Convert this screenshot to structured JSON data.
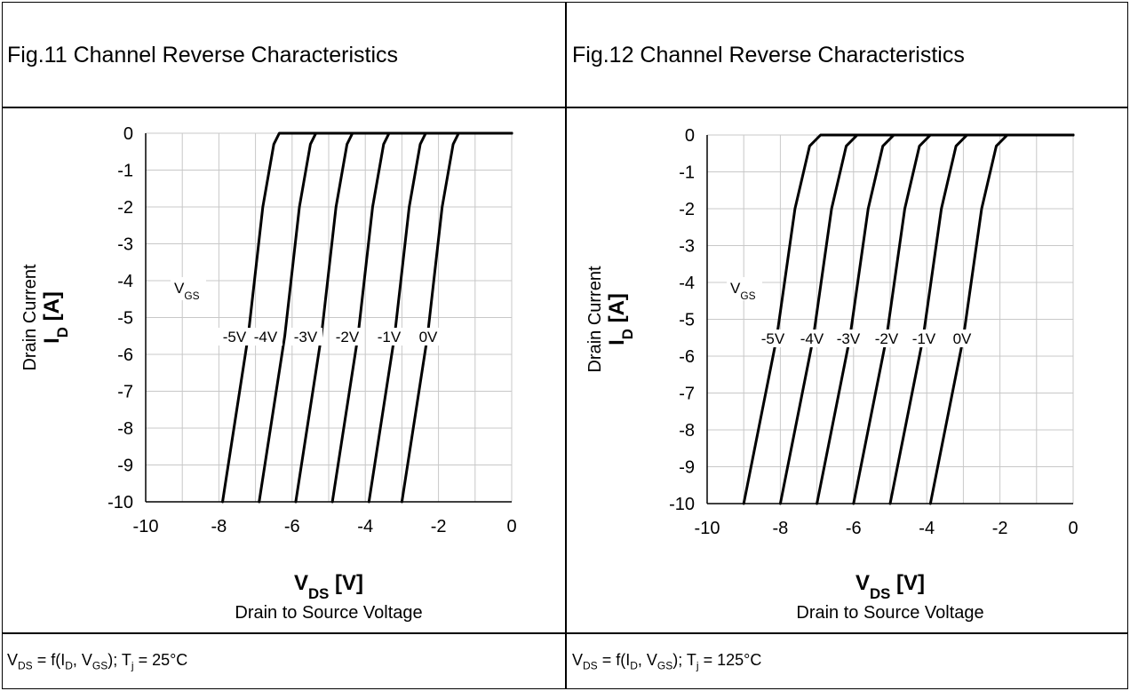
{
  "chart_data": [
    {
      "type": "line",
      "title": "Fig.11  Channel Reverse Characteristics",
      "xlabel_main": "V",
      "xlabel_sub": "DS",
      "xlabel_unit": " [V]",
      "xlabel_desc": "Drain to Source Voltage",
      "ylabel_main": "I",
      "ylabel_sub": "D",
      "ylabel_unit": " [A]",
      "ylabel_desc": "Drain Current",
      "xlim": [
        -10,
        0
      ],
      "ylim": [
        -10,
        0
      ],
      "xticks": [
        "-10",
        "-8",
        "-6",
        "-4",
        "-2",
        "0"
      ],
      "yticks": [
        "0",
        "-1",
        "-2",
        "-3",
        "-4",
        "-5",
        "-6",
        "-7",
        "-8",
        "-9",
        "-10"
      ],
      "legend_title_main": "V",
      "legend_title_sub": "GS",
      "grid": true,
      "condition": {
        "p1": "V",
        "s1": "DS",
        "p2": " = f(I",
        "s2": "D",
        "p3": ", V",
        "s3": "GS",
        "p4": "); T",
        "s4": "j",
        "p5": " = 25°C"
      },
      "series": [
        {
          "name": "-5V",
          "points": [
            [
              -7.9,
              -10
            ],
            [
              -7.2,
              -5.5
            ],
            [
              -6.8,
              -2.0
            ],
            [
              -6.5,
              -0.3
            ],
            [
              -6.35,
              0
            ],
            [
              0,
              0
            ]
          ]
        },
        {
          "name": "-4V",
          "points": [
            [
              -6.9,
              -10
            ],
            [
              -6.2,
              -5.5
            ],
            [
              -5.8,
              -2.0
            ],
            [
              -5.5,
              -0.3
            ],
            [
              -5.35,
              0
            ],
            [
              0,
              0
            ]
          ]
        },
        {
          "name": "-3V",
          "points": [
            [
              -5.9,
              -10
            ],
            [
              -5.2,
              -5.5
            ],
            [
              -4.8,
              -2.0
            ],
            [
              -4.5,
              -0.3
            ],
            [
              -4.35,
              0
            ],
            [
              0,
              0
            ]
          ]
        },
        {
          "name": "-2V",
          "points": [
            [
              -4.9,
              -10
            ],
            [
              -4.2,
              -5.5
            ],
            [
              -3.8,
              -2.0
            ],
            [
              -3.5,
              -0.3
            ],
            [
              -3.35,
              0
            ],
            [
              0,
              0
            ]
          ]
        },
        {
          "name": "-1V",
          "points": [
            [
              -3.9,
              -10
            ],
            [
              -3.2,
              -5.5
            ],
            [
              -2.8,
              -2.0
            ],
            [
              -2.5,
              -0.3
            ],
            [
              -2.35,
              0
            ],
            [
              0,
              0
            ]
          ]
        },
        {
          "name": "0V",
          "points": [
            [
              -3.0,
              -10
            ],
            [
              -2.3,
              -5.5
            ],
            [
              -1.9,
              -2.0
            ],
            [
              -1.6,
              -0.3
            ],
            [
              -1.45,
              0
            ],
            [
              0,
              0
            ]
          ]
        }
      ]
    },
    {
      "type": "line",
      "title": "Fig.12  Channel Reverse Characteristics",
      "xlabel_main": "V",
      "xlabel_sub": "DS",
      "xlabel_unit": " [V]",
      "xlabel_desc": "Drain to Source Voltage",
      "ylabel_main": "I",
      "ylabel_sub": "D",
      "ylabel_unit": " [A]",
      "ylabel_desc": "Drain Current",
      "xlim": [
        -10,
        0
      ],
      "ylim": [
        -10,
        0
      ],
      "xticks": [
        "-10",
        "-8",
        "-6",
        "-4",
        "-2",
        "0"
      ],
      "yticks": [
        "0",
        "-1",
        "-2",
        "-3",
        "-4",
        "-5",
        "-6",
        "-7",
        "-8",
        "-9",
        "-10"
      ],
      "legend_title_main": "V",
      "legend_title_sub": "GS",
      "grid": true,
      "condition": {
        "p1": "V",
        "s1": "DS",
        "p2": " = f(I",
        "s2": "D",
        "p3": ", V",
        "s3": "GS",
        "p4": "); T",
        "s4": "j",
        "p5": " = 125°C"
      },
      "series": [
        {
          "name": "-5V",
          "points": [
            [
              -9.0,
              -10
            ],
            [
              -8.1,
              -5.5
            ],
            [
              -7.6,
              -2.0
            ],
            [
              -7.2,
              -0.3
            ],
            [
              -6.9,
              0
            ],
            [
              0,
              0
            ]
          ]
        },
        {
          "name": "-4V",
          "points": [
            [
              -8.0,
              -10
            ],
            [
              -7.1,
              -5.5
            ],
            [
              -6.6,
              -2.0
            ],
            [
              -6.2,
              -0.3
            ],
            [
              -5.9,
              0
            ],
            [
              0,
              0
            ]
          ]
        },
        {
          "name": "-3V",
          "points": [
            [
              -7.0,
              -10
            ],
            [
              -6.1,
              -5.5
            ],
            [
              -5.6,
              -2.0
            ],
            [
              -5.2,
              -0.3
            ],
            [
              -4.9,
              0
            ],
            [
              0,
              0
            ]
          ]
        },
        {
          "name": "-2V",
          "points": [
            [
              -6.0,
              -10
            ],
            [
              -5.1,
              -5.5
            ],
            [
              -4.6,
              -2.0
            ],
            [
              -4.2,
              -0.3
            ],
            [
              -3.9,
              0
            ],
            [
              0,
              0
            ]
          ]
        },
        {
          "name": "-1V",
          "points": [
            [
              -5.0,
              -10
            ],
            [
              -4.1,
              -5.5
            ],
            [
              -3.6,
              -2.0
            ],
            [
              -3.2,
              -0.3
            ],
            [
              -2.9,
              0
            ],
            [
              0,
              0
            ]
          ]
        },
        {
          "name": "0V",
          "points": [
            [
              -3.9,
              -10
            ],
            [
              -3.0,
              -5.5
            ],
            [
              -2.5,
              -2.0
            ],
            [
              -2.1,
              -0.3
            ],
            [
              -1.8,
              0
            ],
            [
              0,
              0
            ]
          ]
        }
      ]
    }
  ]
}
